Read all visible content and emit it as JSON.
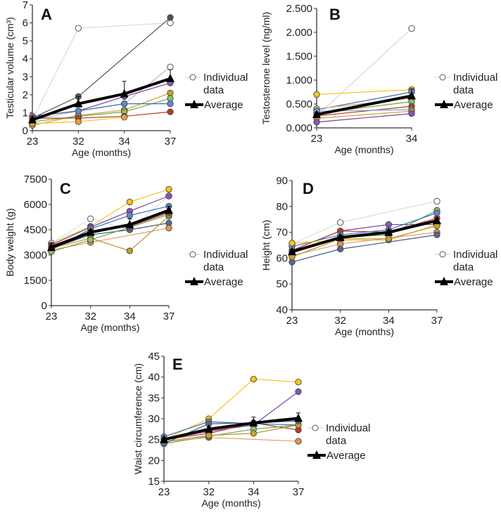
{
  "chart_data": [
    {
      "id": "A",
      "type": "line",
      "panel_label": "A",
      "ylabel": "Testicular volume (cm³)",
      "xlabel": "Age (months)",
      "x": [
        23,
        32,
        34,
        37
      ],
      "ylim": [
        0,
        7
      ],
      "yticks": [
        "0",
        "1",
        "2",
        "3",
        "4",
        "5",
        "6",
        "7"
      ],
      "ytick_values": [
        0,
        1,
        2,
        3,
        4,
        5,
        6,
        7
      ],
      "xticks": [
        "23",
        "32",
        "34",
        "37"
      ],
      "legend": {
        "individual": [
          "Individual",
          "data"
        ],
        "average": "Average"
      },
      "series": [
        {
          "color": "#d8d8d8",
          "fill": "#ffffff",
          "values": [
            0.6,
            5.7,
            null,
            6.0
          ]
        },
        {
          "color": "#555555",
          "fill": "#555555",
          "values": [
            0.7,
            1.9,
            null,
            6.3
          ]
        },
        {
          "color": "#bbbbbb",
          "fill": "#ffffff",
          "values": [
            0.6,
            1.1,
            1.5,
            3.55
          ]
        },
        {
          "color": "#7b3fa0",
          "fill": "#8a55b5",
          "values": [
            0.8,
            1.1,
            1.9,
            2.65
          ]
        },
        {
          "color": "#c9a227",
          "fill": "#c9a227",
          "values": [
            0.3,
            0.85,
            1.15,
            2.1
          ]
        },
        {
          "color": "#6aa84f",
          "fill": "#8cbf6a",
          "values": [
            0.5,
            0.8,
            1.05,
            1.8
          ]
        },
        {
          "color": "#3d6eb5",
          "fill": "#5b8bd0",
          "values": [
            0.8,
            1.1,
            1.5,
            1.5
          ]
        },
        {
          "color": "#c0392b",
          "fill": "#c0392b",
          "values": [
            0.7,
            0.7,
            0.8,
            1.05
          ]
        },
        {
          "color": "#f5c518",
          "fill": "#e8a33a",
          "values": [
            0.4,
            0.5,
            0.75,
            null
          ]
        }
      ],
      "average": {
        "values": [
          0.6,
          1.5,
          2.05,
          2.9
        ],
        "error": [
          0.1,
          0.4,
          0.7,
          0.5
        ]
      }
    },
    {
      "id": "B",
      "type": "line",
      "panel_label": "B",
      "ylabel": "Testosterone level (ng/ml)",
      "xlabel": "Age (months)",
      "x": [
        23,
        34
      ],
      "ylim": [
        0,
        2.5
      ],
      "yticks": [
        "0.000",
        "0.500",
        "1.000",
        "1.500",
        "2.000",
        "2.500"
      ],
      "ytick_values": [
        0,
        0.5,
        1,
        1.5,
        2,
        2.5
      ],
      "xticks": [
        "23",
        "34"
      ],
      "legend": {
        "individual": [
          "Individual",
          "data"
        ],
        "average": "Average"
      },
      "series": [
        {
          "color": "#d8d8d8",
          "fill": "#ffffff",
          "values": [
            0.25,
            2.08
          ]
        },
        {
          "color": "#f5c518",
          "fill": "#f5c518",
          "values": [
            0.7,
            0.8
          ]
        },
        {
          "color": "#3d6eb5",
          "fill": "#5b8bd0",
          "values": [
            0.38,
            0.75
          ]
        },
        {
          "color": "#e8a070",
          "fill": "#e8a070",
          "values": [
            0.4,
            0.62
          ]
        },
        {
          "color": "#6aa84f",
          "fill": "#8cbf6a",
          "values": [
            0.3,
            0.55
          ]
        },
        {
          "color": "#c0392b",
          "fill": "#c0392b",
          "values": [
            0.25,
            0.45
          ]
        },
        {
          "color": "#6fa8dc",
          "fill": "#6fa8dc",
          "values": [
            0.35,
            0.38
          ]
        },
        {
          "color": "#c9a227",
          "fill": "#c9a227",
          "values": [
            0.2,
            0.35
          ]
        },
        {
          "color": "#7b3fa0",
          "fill": "#8a55b5",
          "values": [
            0.12,
            0.3
          ]
        }
      ],
      "average": {
        "values": [
          0.28,
          0.67
        ],
        "error": [
          0.05,
          0.15
        ]
      }
    },
    {
      "id": "C",
      "type": "line",
      "panel_label": "C",
      "ylabel": "Body weight (g)",
      "xlabel": "Age (months)",
      "x": [
        23,
        32,
        34,
        37
      ],
      "ylim": [
        0,
        7500
      ],
      "yticks": [
        "0",
        "1500",
        "3000",
        "4500",
        "6000",
        "7500"
      ],
      "ytick_values": [
        0,
        1500,
        3000,
        4500,
        6000,
        7500
      ],
      "xticks": [
        "23",
        "32",
        "34",
        "37"
      ],
      "legend": {
        "individual": [
          "Individual",
          "data"
        ],
        "average": "Average"
      },
      "series": [
        {
          "color": "#f5c518",
          "fill": "#f5c518",
          "values": [
            3700,
            4700,
            6150,
            6900
          ]
        },
        {
          "color": "#cfe2f3",
          "fill": "#ffffff",
          "values": [
            3700,
            5150,
            4500,
            6500
          ]
        },
        {
          "color": "#7b3fa0",
          "fill": "#8a55b5",
          "values": [
            3600,
            4650,
            5600,
            6500
          ]
        },
        {
          "color": "#3d6eb5",
          "fill": "#5b8bd0",
          "values": [
            3300,
            4550,
            5350,
            5900
          ]
        },
        {
          "color": "#3d5a80",
          "fill": "#4f6d94",
          "values": [
            3400,
            4200,
            4500,
            4900
          ]
        },
        {
          "color": "#e8a070",
          "fill": "#e8944a",
          "values": [
            3300,
            3750,
            null,
            4600
          ]
        },
        {
          "color": "#b8962a",
          "fill": "#b8a020",
          "values": [
            3400,
            4000,
            3250,
            5300
          ]
        },
        {
          "color": "#6aa84f",
          "fill": "#8cbf6a",
          "values": [
            3200,
            3900,
            4650,
            5400
          ]
        },
        {
          "color": "#c0392b",
          "fill": "#c0392b",
          "values": [
            3550,
            4400,
            4700,
            5500
          ]
        }
      ],
      "average": {
        "values": [
          3450,
          4350,
          4800,
          5650
        ],
        "error": [
          100,
          150,
          350,
          250
        ]
      }
    },
    {
      "id": "D",
      "type": "line",
      "panel_label": "D",
      "ylabel": "Height (cm)",
      "xlabel": "Age (months)",
      "x": [
        23,
        32,
        34,
        37
      ],
      "ylim": [
        40,
        90
      ],
      "yticks": [
        "40",
        "50",
        "60",
        "70",
        "80",
        "90"
      ],
      "ytick_values": [
        40,
        50,
        60,
        70,
        80,
        90
      ],
      "xticks": [
        "23",
        "32",
        "34",
        "37"
      ],
      "legend": {
        "individual": [
          "Individual",
          "data"
        ],
        "average": "Average"
      },
      "series": [
        {
          "color": "#dddddd",
          "fill": "#ffffff",
          "values": [
            65.5,
            73.8,
            null,
            82
          ]
        },
        {
          "color": "#7b3fa0",
          "fill": "#8a55b5",
          "values": [
            63,
            70.5,
            73,
            73
          ]
        },
        {
          "color": "#c0392b",
          "fill": "#c0392b",
          "values": [
            63,
            70.5,
            70,
            75.5
          ]
        },
        {
          "color": "#6aa84f",
          "fill": "#8cbf6a",
          "values": [
            62,
            68,
            69,
            78.5
          ]
        },
        {
          "color": "#3d6eb5",
          "fill": "#5b8bd0",
          "values": [
            64.5,
            69,
            71,
            77.5
          ]
        },
        {
          "color": "#f5c518",
          "fill": "#f5c518",
          "values": [
            65.8,
            67,
            67,
            73
          ]
        },
        {
          "color": "#e8a070",
          "fill": "#e8944a",
          "values": [
            61,
            65.5,
            null,
            70
          ]
        },
        {
          "color": "#3d5a80",
          "fill": "#5a6a85",
          "values": [
            58.5,
            63.5,
            null,
            69
          ]
        },
        {
          "color": "#b8962a",
          "fill": "#c9a227",
          "values": [
            60.5,
            67.5,
            67.5,
            72.5
          ]
        }
      ],
      "average": {
        "values": [
          62.5,
          68,
          70,
          74.5
        ],
        "error": [
          0.8,
          0.8,
          1,
          1
        ]
      }
    },
    {
      "id": "E",
      "type": "line",
      "panel_label": "E",
      "ylabel": "Waist circumference (cm)",
      "xlabel": "Age (months)",
      "x": [
        23,
        32,
        34,
        37
      ],
      "ylim": [
        15,
        45
      ],
      "yticks": [
        "15",
        "20",
        "25",
        "30",
        "35",
        "40",
        "45"
      ],
      "ytick_values": [
        15,
        20,
        25,
        30,
        35,
        40,
        45
      ],
      "xticks": [
        "23",
        "32",
        "34",
        "37"
      ],
      "legend": {
        "individual": [
          "Individual",
          "data"
        ],
        "average": "Average"
      },
      "series": [
        {
          "color": "#f5c518",
          "fill": "#f5c518",
          "values": [
            25,
            30,
            39.5,
            38.8
          ]
        },
        {
          "color": "#7b3fa0",
          "fill": "#8a55b5",
          "values": [
            25,
            27,
            28.5,
            36.5
          ]
        },
        {
          "color": "#e8a070",
          "fill": "#e8944a",
          "values": [
            24.5,
            25.5,
            null,
            24.6
          ]
        },
        {
          "color": "#c0392b",
          "fill": "#c0392b",
          "values": [
            25,
            26.5,
            29,
            27.3
          ]
        },
        {
          "color": "#3d6eb5",
          "fill": "#5b8bd0",
          "values": [
            25.7,
            29.3,
            28.8,
            28.5
          ]
        },
        {
          "color": "#6aa84f",
          "fill": "#8cbf6a",
          "values": [
            24,
            25.8,
            27.5,
            28.5
          ]
        },
        {
          "color": "#b8962a",
          "fill": "#c9a227",
          "values": [
            24.5,
            26,
            26.5,
            28.5
          ]
        },
        {
          "color": "#3d5a80",
          "fill": "#5a6a85",
          "values": [
            24,
            28.8,
            29,
            29.5
          ]
        }
      ],
      "average": {
        "values": [
          25,
          27.5,
          29,
          30.1
        ],
        "error": [
          0.5,
          0.6,
          1.4,
          1.3
        ]
      }
    }
  ]
}
